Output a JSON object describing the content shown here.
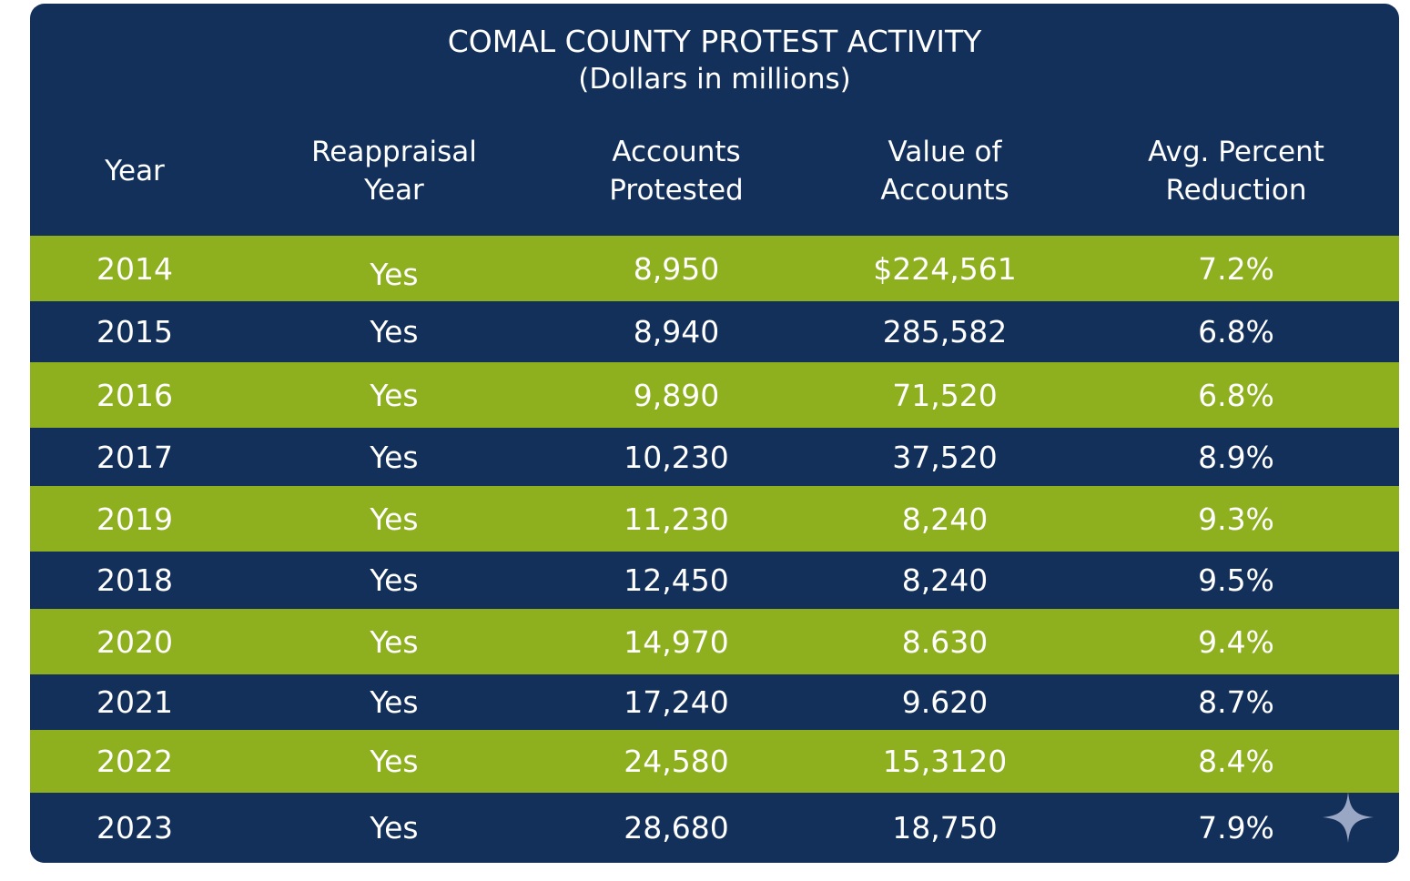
{
  "chart_data": {
    "type": "table",
    "title": "COMAL COUNTY PROTEST ACTIVITY",
    "subtitle": "(Dollars in millions)",
    "columns": [
      "Year",
      "Reappraisal Year",
      "Accounts Protested",
      "Value of Accounts",
      "Avg. Percent Reduction"
    ],
    "header_lines": [
      [
        "Year"
      ],
      [
        "Reappraisal",
        "Year"
      ],
      [
        "Accounts",
        "Protested"
      ],
      [
        "Value of",
        "Accounts"
      ],
      [
        "Avg. Percent",
        "Reduction"
      ]
    ],
    "rows": [
      [
        "2014",
        "Yes",
        "8,950",
        "$224,561",
        "7.2%"
      ],
      [
        "2015",
        "Yes",
        "8,940",
        "285,582",
        "6.8%"
      ],
      [
        "2016",
        "Yes",
        "9,890",
        "71,520",
        "6.8%"
      ],
      [
        "2017",
        "Yes",
        "10,230",
        "37,520",
        "8.9%"
      ],
      [
        "2019",
        "Yes",
        "11,230",
        "8,240",
        "9.3%"
      ],
      [
        "2018",
        "Yes",
        "12,450",
        "8,240",
        "9.5%"
      ],
      [
        "2020",
        "Yes",
        "14,970",
        "8.630",
        "9.4%"
      ],
      [
        "2021",
        "Yes",
        "17,240",
        "9.620",
        "8.7%"
      ],
      [
        "2022",
        "Yes",
        "24,580",
        "15,3120",
        "8.4%"
      ],
      [
        "2023",
        "Yes",
        "28,680",
        "18,750",
        "7.9%"
      ]
    ]
  },
  "colors": {
    "navy": "#13305a",
    "green": "#8eaf1e",
    "text": "#ffffff",
    "sparkle": "#9aa7c4"
  },
  "icons": {
    "sparkle": "sparkle-icon"
  }
}
